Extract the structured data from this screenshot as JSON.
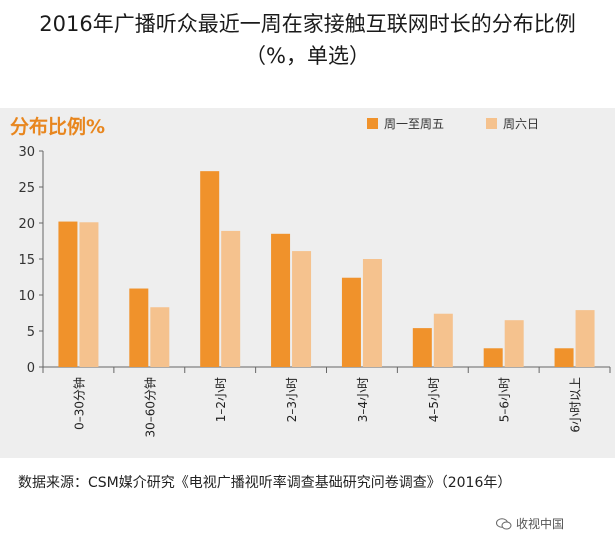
{
  "title_line1": "2016年广播听众最近一周在家接触互联网时长的分布比例",
  "title_line2": "（%，单选）",
  "source": "数据来源：CSM媒介研究《电视广播视听率调查基础研究问卷调查》（2016年）",
  "watermark": "收视中国",
  "watermark_icon": "wechat-icon",
  "colors": {
    "weekday": "#F0922B",
    "weekend": "#F5C28E",
    "accent": "#E8861E"
  },
  "chart_data": {
    "type": "bar",
    "title": "分布比例%",
    "categories": [
      "0–30分钟",
      "30–60分钟",
      "1–2小时",
      "2–3小时",
      "3–4小时",
      "4–5小时",
      "5–6小时",
      "6小时以上"
    ],
    "series": [
      {
        "name": "周一至周五",
        "values": [
          20.2,
          10.9,
          27.2,
          18.5,
          12.4,
          5.4,
          2.6,
          2.6
        ]
      },
      {
        "name": "周六日",
        "values": [
          20.1,
          8.3,
          18.9,
          16.1,
          15.0,
          7.4,
          6.5,
          7.9
        ]
      }
    ],
    "yticks": [
      0,
      5,
      10,
      15,
      20,
      25,
      30
    ],
    "ylim": [
      0,
      30
    ],
    "xlabel": "",
    "ylabel": "分布比例%",
    "legend": "top-right",
    "grid": false
  }
}
